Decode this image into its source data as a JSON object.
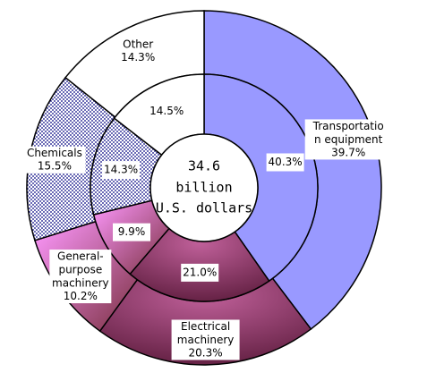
{
  "chart_data": {
    "type": "donut",
    "categories": [
      "Transportatio\nn equipment",
      "Electrical\nmachinery",
      "General-\npurpose\nmachinery",
      "Chemicals",
      "Other"
    ],
    "colors": [
      "#9999ff",
      "#993366",
      "#ff99ff",
      "#ffffff",
      "#ffffff"
    ],
    "fill_pattern": [
      null,
      null,
      null,
      "dots",
      null
    ],
    "series": [
      {
        "values": [
          39.7,
          20.3,
          10.2,
          15.5,
          14.3
        ],
        "value_labels": [
          "39.7%",
          "20.3%",
          "10.2%",
          "15.5%",
          "14.3%"
        ]
      },
      {
        "values": [
          40.3,
          21.0,
          9.9,
          14.3,
          14.5
        ],
        "value_labels": [
          "40.3%",
          "21.0%",
          "9.9%",
          "14.3%",
          "14.5%"
        ]
      }
    ],
    "center_text": [
      "34.6",
      "billion",
      "U.S. dollars"
    ]
  }
}
